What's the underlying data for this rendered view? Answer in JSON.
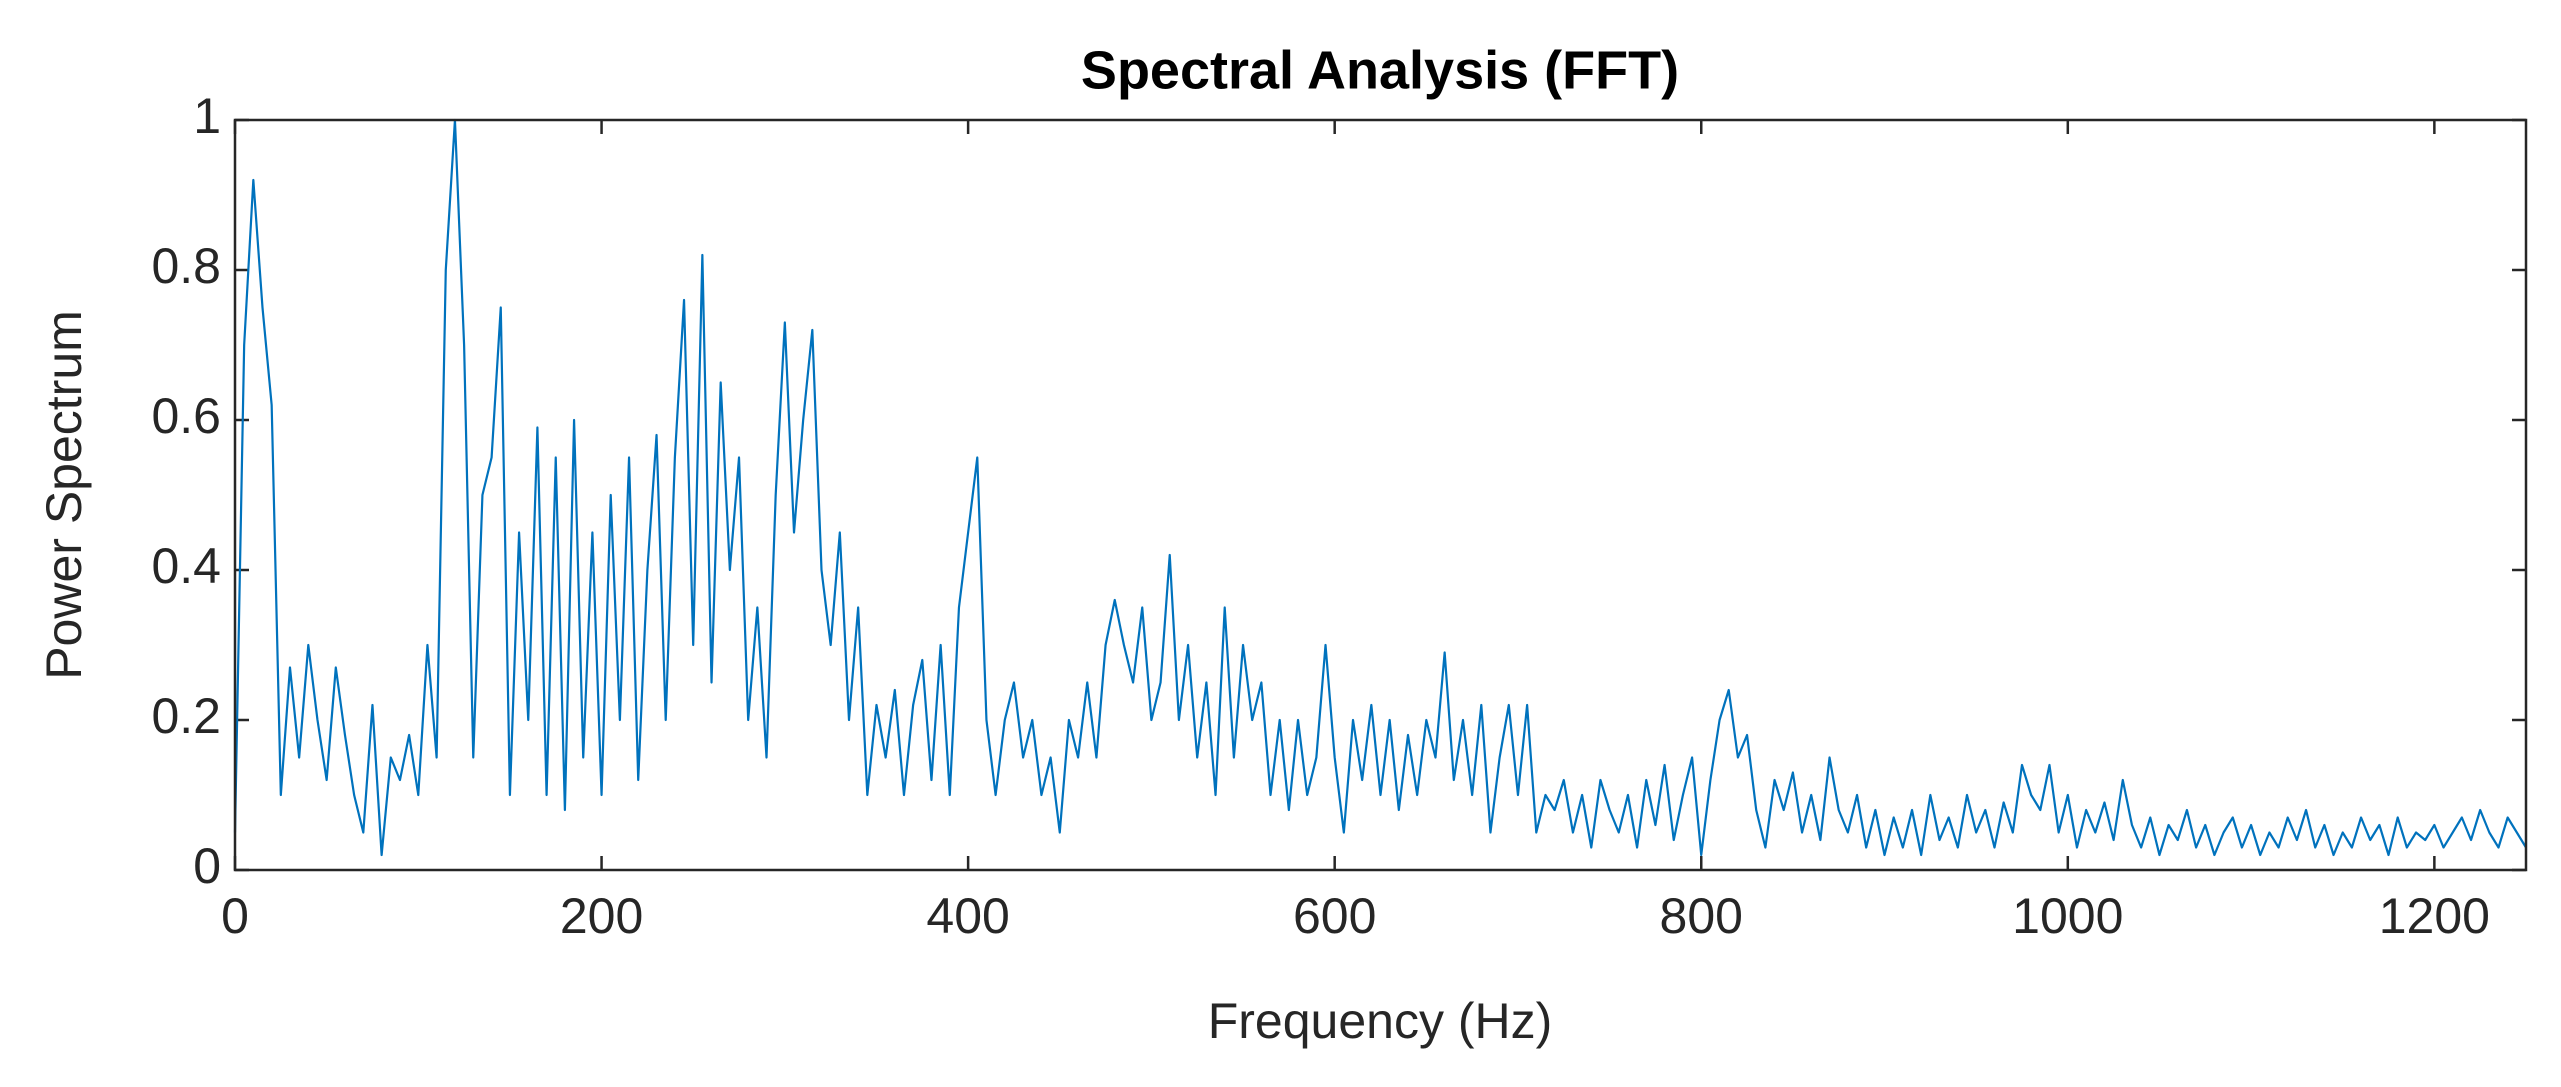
{
  "chart_data": {
    "type": "line",
    "title": "Spectral Analysis (FFT)",
    "x_label": "Frequency (Hz)",
    "y_label": "Power Spectrum",
    "xlim": [
      0,
      1250
    ],
    "ylim": [
      0,
      1
    ],
    "xticks": [
      0,
      200,
      400,
      600,
      800,
      1000,
      1200
    ],
    "yticks": [
      0,
      0.2,
      0.4,
      0.6,
      0.8,
      1
    ],
    "grid": false,
    "x": [
      0,
      5,
      10,
      15,
      20,
      25,
      30,
      35,
      40,
      45,
      50,
      55,
      60,
      65,
      70,
      75,
      80,
      85,
      90,
      95,
      100,
      105,
      110,
      115,
      120,
      125,
      130,
      135,
      140,
      145,
      150,
      155,
      160,
      165,
      170,
      175,
      180,
      185,
      190,
      195,
      200,
      205,
      210,
      215,
      220,
      225,
      230,
      235,
      240,
      245,
      250,
      255,
      260,
      265,
      270,
      275,
      280,
      285,
      290,
      295,
      300,
      305,
      310,
      315,
      320,
      325,
      330,
      335,
      340,
      345,
      350,
      355,
      360,
      365,
      370,
      375,
      380,
      385,
      390,
      395,
      400,
      405,
      410,
      415,
      420,
      425,
      430,
      435,
      440,
      445,
      450,
      455,
      460,
      465,
      470,
      475,
      480,
      485,
      490,
      495,
      500,
      505,
      510,
      515,
      520,
      525,
      530,
      535,
      540,
      545,
      550,
      555,
      560,
      565,
      570,
      575,
      580,
      585,
      590,
      595,
      600,
      605,
      610,
      615,
      620,
      625,
      630,
      635,
      640,
      645,
      650,
      655,
      660,
      665,
      670,
      675,
      680,
      685,
      690,
      695,
      700,
      705,
      710,
      715,
      720,
      725,
      730,
      735,
      740,
      745,
      750,
      755,
      760,
      765,
      770,
      775,
      780,
      785,
      790,
      795,
      800,
      805,
      810,
      815,
      820,
      825,
      830,
      835,
      840,
      845,
      850,
      855,
      860,
      865,
      870,
      875,
      880,
      885,
      890,
      895,
      900,
      905,
      910,
      915,
      920,
      925,
      930,
      935,
      940,
      945,
      950,
      955,
      960,
      965,
      970,
      975,
      980,
      985,
      990,
      995,
      1000,
      1005,
      1010,
      1015,
      1020,
      1025,
      1030,
      1035,
      1040,
      1045,
      1050,
      1055,
      1060,
      1065,
      1070,
      1075,
      1080,
      1085,
      1090,
      1095,
      1100,
      1105,
      1110,
      1115,
      1120,
      1125,
      1130,
      1135,
      1140,
      1145,
      1150,
      1155,
      1160,
      1165,
      1170,
      1175,
      1180,
      1185,
      1190,
      1195,
      1200,
      1205,
      1210,
      1215,
      1220,
      1225,
      1230,
      1235,
      1240,
      1245,
      1250
    ],
    "series": [
      {
        "color": "#0072bd",
        "values": [
          0.05,
          0.7,
          0.92,
          0.75,
          0.62,
          0.1,
          0.27,
          0.15,
          0.3,
          0.2,
          0.12,
          0.27,
          0.18,
          0.1,
          0.05,
          0.22,
          0.02,
          0.15,
          0.12,
          0.18,
          0.1,
          0.3,
          0.15,
          0.8,
          1.0,
          0.7,
          0.15,
          0.5,
          0.55,
          0.75,
          0.1,
          0.45,
          0.2,
          0.59,
          0.1,
          0.55,
          0.08,
          0.6,
          0.15,
          0.45,
          0.1,
          0.5,
          0.2,
          0.55,
          0.12,
          0.4,
          0.58,
          0.2,
          0.55,
          0.76,
          0.3,
          0.82,
          0.25,
          0.65,
          0.4,
          0.55,
          0.2,
          0.35,
          0.15,
          0.5,
          0.73,
          0.45,
          0.6,
          0.72,
          0.4,
          0.3,
          0.45,
          0.2,
          0.35,
          0.1,
          0.22,
          0.15,
          0.24,
          0.1,
          0.22,
          0.28,
          0.12,
          0.3,
          0.1,
          0.35,
          0.45,
          0.55,
          0.2,
          0.1,
          0.2,
          0.25,
          0.15,
          0.2,
          0.1,
          0.15,
          0.05,
          0.2,
          0.15,
          0.25,
          0.15,
          0.3,
          0.36,
          0.3,
          0.25,
          0.35,
          0.2,
          0.25,
          0.42,
          0.2,
          0.3,
          0.15,
          0.25,
          0.1,
          0.35,
          0.15,
          0.3,
          0.2,
          0.25,
          0.1,
          0.2,
          0.08,
          0.2,
          0.1,
          0.15,
          0.3,
          0.15,
          0.05,
          0.2,
          0.12,
          0.22,
          0.1,
          0.2,
          0.08,
          0.18,
          0.1,
          0.2,
          0.15,
          0.29,
          0.12,
          0.2,
          0.1,
          0.22,
          0.05,
          0.15,
          0.22,
          0.1,
          0.22,
          0.05,
          0.1,
          0.08,
          0.12,
          0.05,
          0.1,
          0.03,
          0.12,
          0.08,
          0.05,
          0.1,
          0.03,
          0.12,
          0.06,
          0.14,
          0.04,
          0.1,
          0.15,
          0.02,
          0.12,
          0.2,
          0.24,
          0.15,
          0.18,
          0.08,
          0.03,
          0.12,
          0.08,
          0.13,
          0.05,
          0.1,
          0.04,
          0.15,
          0.08,
          0.05,
          0.1,
          0.03,
          0.08,
          0.02,
          0.07,
          0.03,
          0.08,
          0.02,
          0.1,
          0.04,
          0.07,
          0.03,
          0.1,
          0.05,
          0.08,
          0.03,
          0.09,
          0.05,
          0.14,
          0.1,
          0.08,
          0.14,
          0.05,
          0.1,
          0.03,
          0.08,
          0.05,
          0.09,
          0.04,
          0.12,
          0.06,
          0.03,
          0.07,
          0.02,
          0.06,
          0.04,
          0.08,
          0.03,
          0.06,
          0.02,
          0.05,
          0.07,
          0.03,
          0.06,
          0.02,
          0.05,
          0.03,
          0.07,
          0.04,
          0.08,
          0.03,
          0.06,
          0.02,
          0.05,
          0.03,
          0.07,
          0.04,
          0.06,
          0.02,
          0.07,
          0.03,
          0.05,
          0.04,
          0.06,
          0.03,
          0.05,
          0.07,
          0.04,
          0.08,
          0.05,
          0.03,
          0.07,
          0.05,
          0.03
        ]
      }
    ]
  }
}
